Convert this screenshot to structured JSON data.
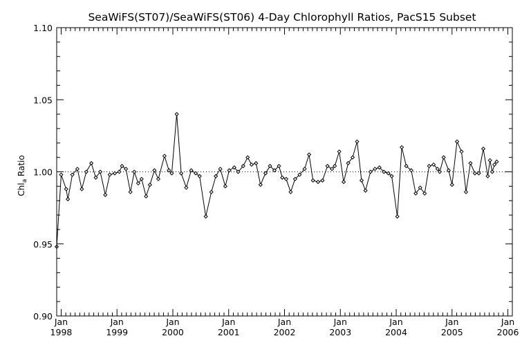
{
  "chart_data": {
    "type": "line",
    "title": "SeaWiFS(ST07)/SeaWiFS(ST06) 4-Day Chlorophyll Ratios, PacS15 Subset",
    "ylabel_main": "Chl",
    "ylabel_sub": "a",
    "ylabel_tail": " Ratio",
    "ylim": [
      0.9,
      1.1
    ],
    "xlim": [
      1997.92,
      2006.08
    ],
    "y_ticks": [
      "0.90",
      "0.95",
      "1.00",
      "1.05",
      "1.10"
    ],
    "x_ticks": [
      {
        "month": "Jan",
        "year": "1998"
      },
      {
        "month": "Jan",
        "year": "1999"
      },
      {
        "month": "Jan",
        "year": "2000"
      },
      {
        "month": "Jan",
        "year": "2001"
      },
      {
        "month": "Jan",
        "year": "2002"
      },
      {
        "month": "Jan",
        "year": "2003"
      },
      {
        "month": "Jan",
        "year": "2004"
      },
      {
        "month": "Jan",
        "year": "2005"
      },
      {
        "month": "Jan",
        "year": "2006"
      }
    ],
    "reference_line": 1.0,
    "series": [
      {
        "marker": "diamond",
        "points": [
          [
            1997.92,
            0.948
          ],
          [
            1998.0,
            0.998
          ],
          [
            1998.09,
            0.988
          ],
          [
            1998.12,
            0.981
          ],
          [
            1998.2,
            0.998
          ],
          [
            1998.29,
            1.002
          ],
          [
            1998.37,
            0.988
          ],
          [
            1998.45,
            1.0
          ],
          [
            1998.54,
            1.006
          ],
          [
            1998.62,
            0.996
          ],
          [
            1998.7,
            1.0
          ],
          [
            1998.79,
            0.984
          ],
          [
            1998.87,
            0.998
          ],
          [
            1998.96,
            0.999
          ],
          [
            1999.04,
            1.0
          ],
          [
            1999.09,
            1.004
          ],
          [
            1999.16,
            1.002
          ],
          [
            1999.24,
            0.986
          ],
          [
            1999.31,
            1.0
          ],
          [
            1999.38,
            0.992
          ],
          [
            1999.44,
            0.995
          ],
          [
            1999.52,
            0.983
          ],
          [
            1999.59,
            0.991
          ],
          [
            1999.67,
            1.001
          ],
          [
            1999.74,
            0.995
          ],
          [
            1999.85,
            1.011
          ],
          [
            1999.93,
            1.001
          ],
          [
            1999.98,
            0.999
          ],
          [
            2000.07,
            1.04
          ],
          [
            2000.15,
            0.999
          ],
          [
            2000.24,
            0.989
          ],
          [
            2000.33,
            1.001
          ],
          [
            2000.41,
            0.999
          ],
          [
            2000.48,
            0.997
          ],
          [
            2000.59,
            0.969
          ],
          [
            2000.69,
            0.986
          ],
          [
            2000.77,
            0.997
          ],
          [
            2000.85,
            1.002
          ],
          [
            2000.94,
            0.99
          ],
          [
            2001.01,
            1.001
          ],
          [
            2001.1,
            1.003
          ],
          [
            2001.17,
            1.0
          ],
          [
            2001.26,
            1.004
          ],
          [
            2001.34,
            1.01
          ],
          [
            2001.41,
            1.005
          ],
          [
            2001.49,
            1.006
          ],
          [
            2001.57,
            0.991
          ],
          [
            2001.66,
            0.999
          ],
          [
            2001.74,
            1.004
          ],
          [
            2001.82,
            1.001
          ],
          [
            2001.9,
            1.004
          ],
          [
            2001.96,
            0.996
          ],
          [
            2002.03,
            0.995
          ],
          [
            2002.11,
            0.986
          ],
          [
            2002.19,
            0.995
          ],
          [
            2002.27,
            0.998
          ],
          [
            2002.36,
            1.002
          ],
          [
            2002.44,
            1.012
          ],
          [
            2002.51,
            0.994
          ],
          [
            2002.6,
            0.993
          ],
          [
            2002.68,
            0.994
          ],
          [
            2002.77,
            1.004
          ],
          [
            2002.85,
            1.002
          ],
          [
            2002.9,
            1.004
          ],
          [
            2002.98,
            1.014
          ],
          [
            2003.06,
            0.993
          ],
          [
            2003.14,
            1.006
          ],
          [
            2003.22,
            1.01
          ],
          [
            2003.3,
            1.021
          ],
          [
            2003.38,
            0.994
          ],
          [
            2003.45,
            0.987
          ],
          [
            2003.54,
            1.0
          ],
          [
            2003.62,
            1.002
          ],
          [
            2003.7,
            1.003
          ],
          [
            2003.78,
            1.0
          ],
          [
            2003.86,
            0.999
          ],
          [
            2003.92,
            0.997
          ],
          [
            2004.02,
            0.969
          ],
          [
            2004.1,
            1.017
          ],
          [
            2004.18,
            1.004
          ],
          [
            2004.27,
            1.001
          ],
          [
            2004.35,
            0.985
          ],
          [
            2004.43,
            0.989
          ],
          [
            2004.51,
            0.985
          ],
          [
            2004.59,
            1.004
          ],
          [
            2004.67,
            1.005
          ],
          [
            2004.74,
            1.002
          ],
          [
            2004.78,
            1.0
          ],
          [
            2004.85,
            1.01
          ],
          [
            2004.94,
            1.001
          ],
          [
            2005.0,
            0.991
          ],
          [
            2005.09,
            1.021
          ],
          [
            2005.17,
            1.014
          ],
          [
            2005.25,
            0.986
          ],
          [
            2005.33,
            1.006
          ],
          [
            2005.41,
            0.999
          ],
          [
            2005.48,
            0.999
          ],
          [
            2005.56,
            1.016
          ],
          [
            2005.64,
            0.997
          ],
          [
            2005.68,
            1.008
          ],
          [
            2005.72,
            1.0
          ],
          [
            2005.76,
            1.005
          ],
          [
            2005.8,
            1.007
          ]
        ]
      }
    ]
  }
}
